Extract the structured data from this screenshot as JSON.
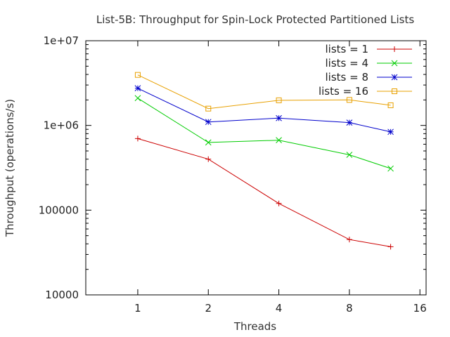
{
  "chart_data": {
    "type": "line",
    "title": "List-5B: Throughput for Spin-Lock Protected Partitioned Lists",
    "xlabel": "Threads",
    "ylabel": "Throughput (operations/s)",
    "x_scale": "log2",
    "y_scale": "log10",
    "xlim": [
      0.6,
      17
    ],
    "ylim": [
      10000,
      10000000
    ],
    "x_ticks": [
      {
        "value": 1,
        "label": "1"
      },
      {
        "value": 2,
        "label": "2"
      },
      {
        "value": 4,
        "label": "4"
      },
      {
        "value": 8,
        "label": "8"
      },
      {
        "value": 16,
        "label": "16"
      }
    ],
    "y_ticks": [
      {
        "value": 10000,
        "label": "10000"
      },
      {
        "value": 100000,
        "label": "100000"
      },
      {
        "value": 1000000,
        "label": "1e+06"
      },
      {
        "value": 10000000,
        "label": "1e+07"
      }
    ],
    "legend_position": "top-right",
    "grid": false,
    "series": [
      {
        "name": "lists = 1",
        "color": "#cc0000",
        "marker": "plus",
        "x": [
          1,
          2,
          4,
          8,
          12
        ],
        "y": [
          700000,
          400000,
          120000,
          45000,
          37000
        ]
      },
      {
        "name": "lists = 4",
        "color": "#00cc00",
        "marker": "cross",
        "x": [
          1,
          2,
          4,
          8,
          12
        ],
        "y": [
          2100000,
          630000,
          670000,
          450000,
          310000
        ]
      },
      {
        "name": "lists = 8",
        "color": "#0000cc",
        "marker": "star",
        "x": [
          1,
          2,
          4,
          8,
          12
        ],
        "y": [
          2750000,
          1100000,
          1220000,
          1080000,
          840000
        ]
      },
      {
        "name": "lists = 16",
        "color": "#e8a000",
        "marker": "square",
        "x": [
          1,
          2,
          4,
          8,
          12
        ],
        "y": [
          3950000,
          1580000,
          1980000,
          2000000,
          1730000
        ]
      }
    ]
  }
}
